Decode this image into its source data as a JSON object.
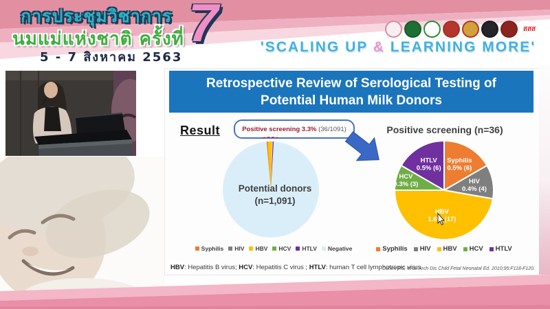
{
  "header": {
    "event_title_line1": "การประชุมวิชาการ",
    "event_title_line2": "นมแม่แห่งชาติ ครั้งที่",
    "event_dates": "5 - 7 สิงหาคม 2563",
    "edition_number": "7",
    "slogan_prefix": "'SCALING UP ",
    "slogan_amp": "&",
    "slogan_suffix": " LEARNING MORE'",
    "logos": [
      {
        "id": "mother-child-foundation-logo",
        "color": "#f7eef1",
        "border": "#d98ca0"
      },
      {
        "id": "green-health-department-logo",
        "color": "#1e6f33",
        "border": "#185a2a"
      },
      {
        "id": "public-health-ministry-logo",
        "color": "#ffffff",
        "border": "#2e8b3a"
      },
      {
        "id": "royal-emblem-logo",
        "color": "#b5372c",
        "border": "#a33127"
      },
      {
        "id": "royal-college-logo",
        "color": "#d2a23a",
        "border": "#b5372c"
      },
      {
        "id": "medical-council-logo",
        "color": "#26262a",
        "border": "#1a1a1d"
      },
      {
        "id": "pediatric-society-logo",
        "color": "#8e2420",
        "border": "#7c1f1c"
      },
      {
        "id": "thai-health-promotion-logo",
        "color": "#ffffff",
        "border": "#ffffff",
        "text": "สสส",
        "text_color": "#e02b2b"
      }
    ]
  },
  "slide": {
    "title_line1": "Retrospective Review of Serological Testing of",
    "title_line2": "Potential Human Milk Donors",
    "result_label": "Result",
    "callout_highlight": "Positive screening 3.3%",
    "callout_detail": " (36/1091)",
    "left_pie_label_line1": "Potential donors",
    "left_pie_label_line2": "(n=1,091)",
    "right_pie_title": "Positive screening (n=36)",
    "footnote_parts": [
      {
        "term": "HBV",
        "rest": ": Hepatitis B virus; "
      },
      {
        "term": "HCV",
        "rest": ": Hepatitis C virus ; "
      },
      {
        "term": "HTLV",
        "rest": ": human T cell lymphotropic virus"
      }
    ],
    "citation": "Cohen RS, et al. Arch Dis Child Fetal Neonatal Ed. 2010;95:F118-F120."
  },
  "legend_colors": {
    "Syphilis": "#ed7d31",
    "HIV": "#7f7f7f",
    "HBV": "#ffc000",
    "HCV": "#70ad47",
    "HTLV": "#7030a0",
    "Negative": "#d9eef8"
  },
  "chart_data": [
    {
      "type": "pie",
      "title": "Potential donors (n=1,091)",
      "total": 1091,
      "slices": [
        {
          "label": "Positive screening",
          "value": 36,
          "percent_label": "3.3%",
          "color": "#ffc000"
        },
        {
          "label": "Negative",
          "value": 1055,
          "percent_label": "96.7%",
          "color": "#daeef9"
        }
      ],
      "annotation": "Positive screening 3.3% (36/1091)",
      "legend": [
        "Syphilis",
        "HIV",
        "HBV",
        "HCV",
        "HTLV",
        "Negative"
      ],
      "legend_position": "bottom",
      "highlight_wedges": [
        {
          "color": "#ed7d31",
          "from": -5.2,
          "to": -3.8
        },
        {
          "color": "#ffc000",
          "from": -3.8,
          "to": 1.4
        },
        {
          "color": "#7030a0",
          "from": 2.2,
          "to": 3.4
        }
      ]
    },
    {
      "type": "pie",
      "title": "Positive screening (n=36)",
      "total": 36,
      "slices": [
        {
          "label": "Syphilis",
          "count": 6,
          "percent_label": "0.5%",
          "color": "#ed7d31"
        },
        {
          "label": "HIV",
          "count": 4,
          "percent_label": "0.4%",
          "color": "#7f7f7f"
        },
        {
          "label": "HBV",
          "count": 17,
          "percent_label": "1.6%",
          "color": "#ffc000"
        },
        {
          "label": "HCV",
          "count": 3,
          "percent_label": "0.3%",
          "color": "#70ad47"
        },
        {
          "label": "HTLV",
          "count": 6,
          "percent_label": "0.5%",
          "color": "#7030a0"
        }
      ],
      "legend": [
        "Syphilis",
        "HIV",
        "HBV",
        "HCV",
        "HTLV"
      ],
      "legend_position": "bottom"
    }
  ]
}
